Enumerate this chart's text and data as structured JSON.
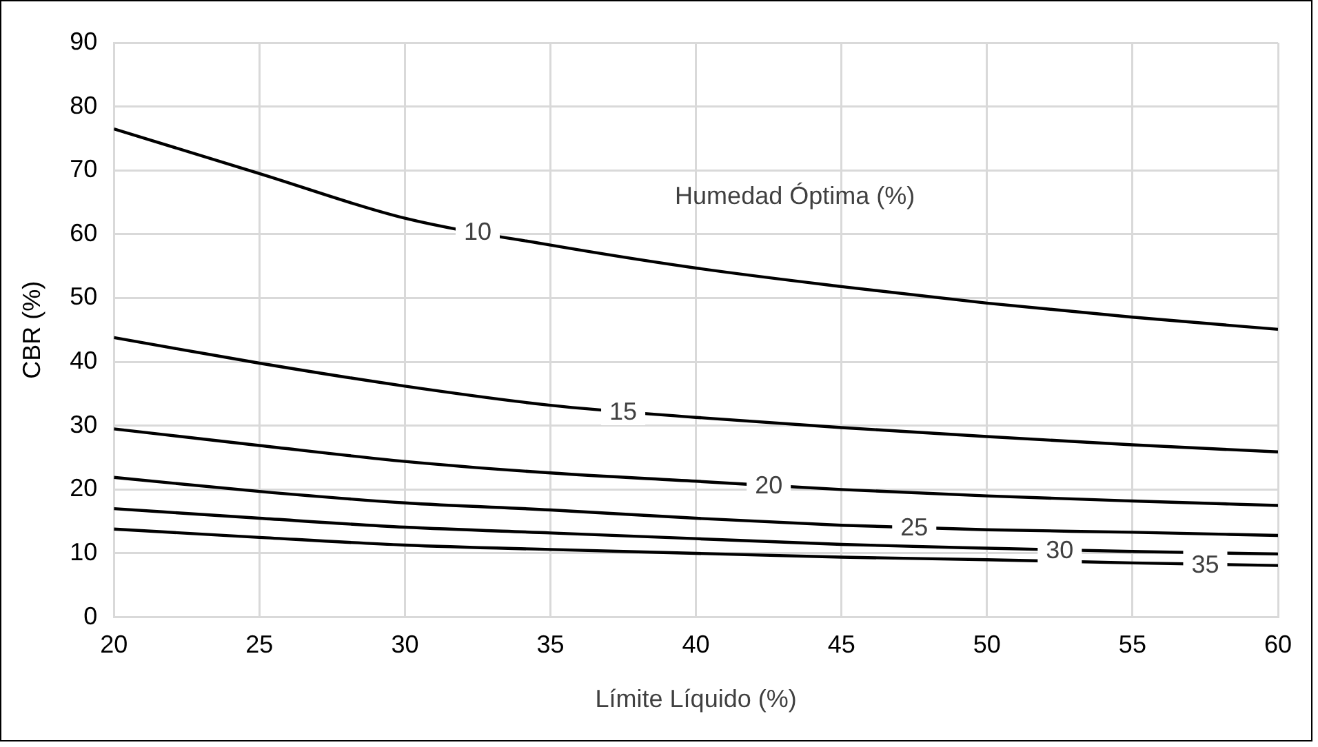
{
  "chart_data": {
    "type": "line",
    "xlabel": "Límite Líquido (%)",
    "ylabel": "CBR (%)",
    "annotations": [
      "Humedad Óptima (%)"
    ],
    "x": [
      20,
      25,
      30,
      35,
      40,
      45,
      50,
      55,
      60
    ],
    "xlim": [
      20,
      60
    ],
    "xticks": [
      20,
      25,
      30,
      35,
      40,
      45,
      50,
      55,
      60
    ],
    "ylim": [
      0,
      90
    ],
    "yticks": [
      0,
      10,
      20,
      30,
      40,
      50,
      60,
      70,
      80,
      90
    ],
    "grid": true,
    "legend": false,
    "marker": "none",
    "line_style": "solid",
    "series": [
      {
        "name": "10",
        "color": "#000000",
        "values": [
          76.5,
          69.5,
          62.5,
          58.3,
          54.7,
          51.8,
          49.2,
          47,
          45.1
        ]
      },
      {
        "name": "15",
        "color": "#000000",
        "values": [
          43.8,
          39.8,
          36.2,
          33.2,
          31.3,
          29.7,
          28.3,
          27,
          25.9
        ]
      },
      {
        "name": "20",
        "color": "#000000",
        "values": [
          29.5,
          26.9,
          24.4,
          22.6,
          21.3,
          20,
          19,
          18.2,
          17.5
        ]
      },
      {
        "name": "25",
        "color": "#000000",
        "values": [
          21.9,
          19.7,
          17.9,
          16.8,
          15.5,
          14.4,
          13.7,
          13.3,
          12.8
        ]
      },
      {
        "name": "30",
        "color": "#000000",
        "values": [
          17,
          15.5,
          14.1,
          13.2,
          12.3,
          11.4,
          10.8,
          10.3,
          9.9
        ]
      },
      {
        "name": "35",
        "color": "#000000",
        "values": [
          13.8,
          12.5,
          11.3,
          10.6,
          10,
          9.4,
          9,
          8.5,
          8.1
        ]
      }
    ]
  }
}
